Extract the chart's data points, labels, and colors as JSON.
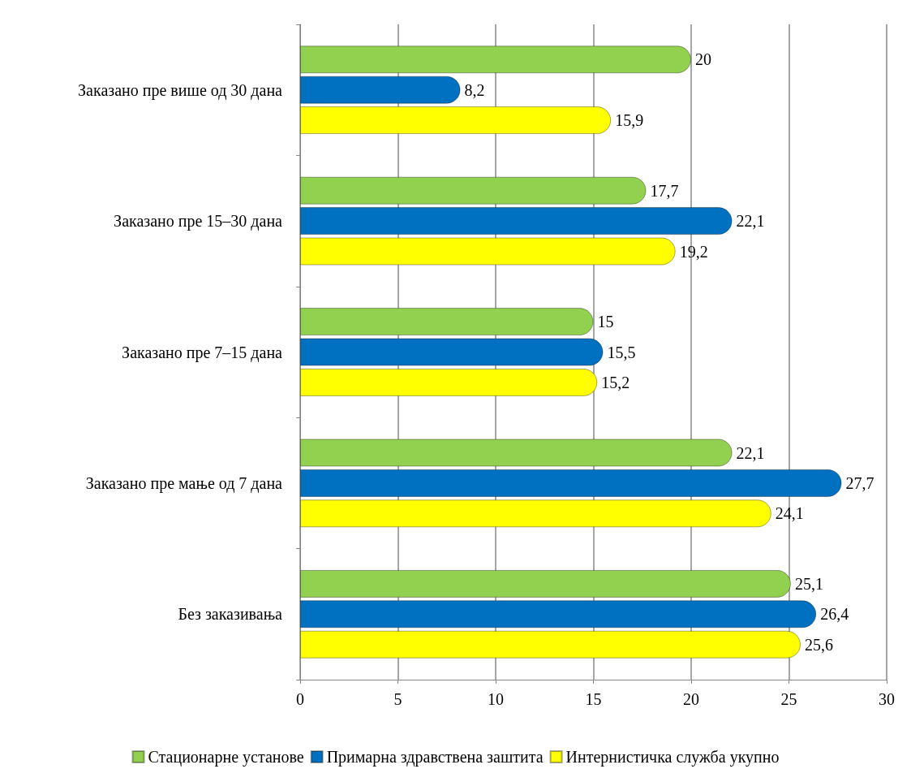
{
  "chart_data": {
    "type": "bar",
    "orientation": "horizontal",
    "categories": [
      "Заказано пре више од 30 дана",
      "Заказано пре 15–30 дана",
      "Заказано пре 7–15 дана",
      "Заказано пре мање од 7 дана",
      "Без заказивања"
    ],
    "series": [
      {
        "name": "Стационарне установе",
        "color": "#92d050",
        "values": [
          20,
          17.7,
          15,
          22.1,
          25.1
        ],
        "value_labels": [
          "20",
          "17,7",
          "15",
          "22,1",
          "25,1"
        ]
      },
      {
        "name": "Примарна здравствена заштита",
        "color": "#0070c0",
        "values": [
          8.2,
          22.1,
          15.5,
          27.7,
          26.4
        ],
        "value_labels": [
          "8,2",
          "22,1",
          "15,5",
          "27,7",
          "26,4"
        ]
      },
      {
        "name": "Интернистичка служба укупно",
        "color": "#ffff00",
        "values": [
          15.9,
          19.2,
          15.2,
          24.1,
          25.6
        ],
        "value_labels": [
          "15,9",
          "19,2",
          "15,2",
          "24,1",
          "25,6"
        ]
      }
    ],
    "xlim": [
      0,
      30
    ],
    "xticks": [
      0,
      5,
      10,
      15,
      20,
      25,
      30
    ],
    "grid": "x",
    "legend": "bottom"
  }
}
